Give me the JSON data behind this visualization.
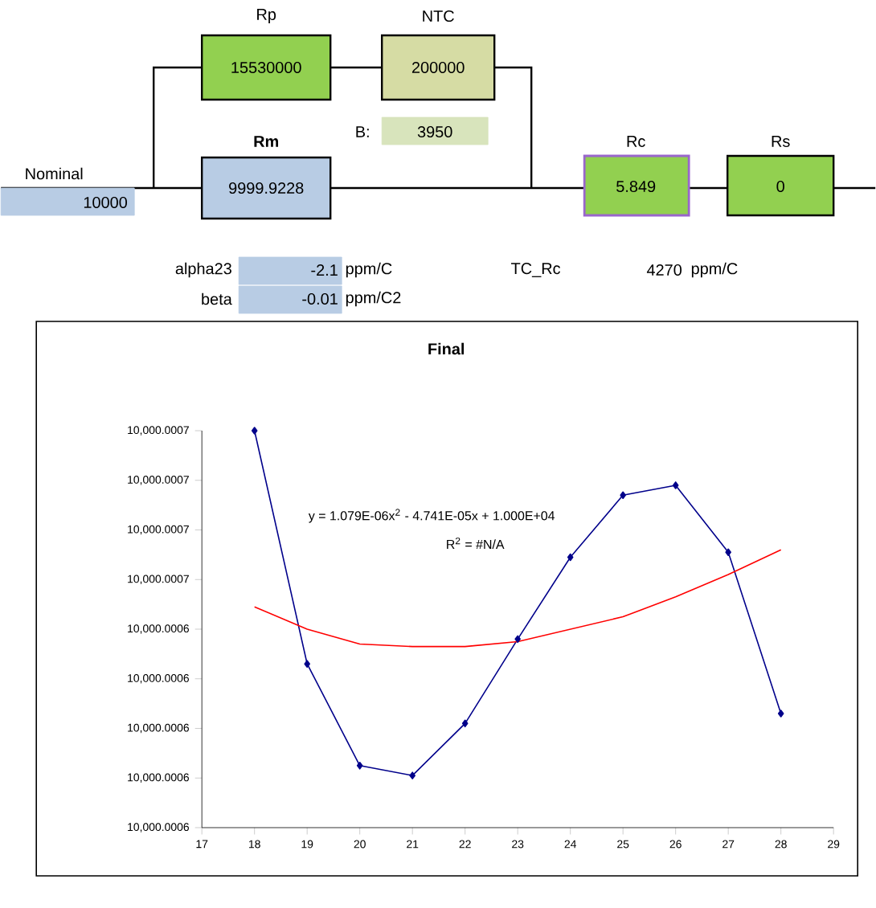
{
  "chart_data": {
    "type": "line",
    "title": "Final",
    "x": [
      18,
      19,
      20,
      21,
      22,
      23,
      24,
      25,
      26,
      27,
      28
    ],
    "series": [
      {
        "color": "#00008b",
        "values": [
          10000.00072,
          10000.000626,
          10000.000585,
          10000.000581,
          10000.000602,
          10000.000636,
          10000.000669,
          10000.000694,
          10000.000698,
          10000.000671,
          10000.000606
        ]
      },
      {
        "type": "line",
        "color": "#ff0000",
        "marker": "none",
        "x": [
          18,
          19,
          20,
          21,
          22,
          23,
          24,
          25,
          26,
          27,
          28
        ],
        "values": [
          10000.000649,
          10000.00064,
          10000.000634,
          10000.000633,
          10000.000633,
          10000.000635,
          10000.00064,
          10000.000645,
          10000.000653,
          10000.000662,
          10000.000672
        ]
      }
    ],
    "marker": "diamond",
    "grid": false,
    "xlim": [
      17,
      29
    ],
    "xticks": [
      17,
      18,
      19,
      20,
      21,
      22,
      23,
      24,
      25,
      26,
      27,
      28,
      29
    ],
    "ylim": [
      10000.00056,
      10000.00072
    ],
    "yticks": [
      {
        "value": 10000.00056,
        "label": "10,000.0006"
      },
      {
        "value": 10000.00058,
        "label": "10,000.0006"
      },
      {
        "value": 10000.0006,
        "label": "10,000.0006"
      },
      {
        "value": 10000.00062,
        "label": "10,000.0006"
      },
      {
        "value": 10000.00064,
        "label": "10,000.0006"
      },
      {
        "value": 10000.00066,
        "label": "10,000.0007"
      },
      {
        "value": 10000.00068,
        "label": "10,000.0007"
      },
      {
        "value": 10000.0007,
        "label": "10,000.0007"
      },
      {
        "value": 10000.00072,
        "label": "10,000.0007"
      }
    ],
    "annotations": [
      "Rp",
      "15530000",
      "NTC",
      "200000",
      "B:",
      "3950",
      "Nominal",
      "10000",
      "Rm",
      "9999.9228",
      "Rc",
      "5.849",
      "Rs",
      "0",
      "alpha23",
      "-2.1",
      "ppm/C",
      "beta",
      "-0.01",
      "ppm/C2",
      "TC_Rc",
      "4270",
      "ppm/C",
      "y = 1.079E-06x$^{2}$ - 4.741E-05x + 1.000E+04",
      "R$^{2}$ = #N/A"
    ]
  }
}
